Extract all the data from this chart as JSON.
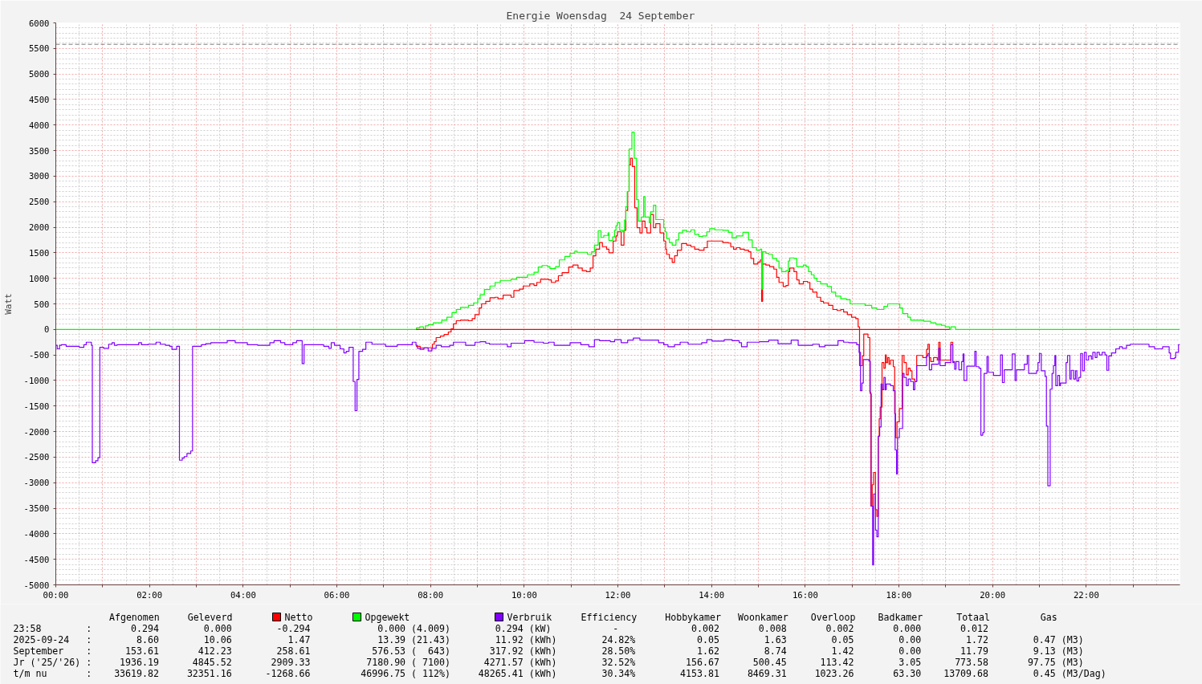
{
  "chart_data": {
    "type": "step",
    "title": "Energie Woensdag  24 September",
    "ylabel": "Watt",
    "xlim": [
      0,
      24
    ],
    "ylim": [
      -5000,
      6000
    ],
    "xticks": [
      {
        "value": 0,
        "label": "00:00"
      },
      {
        "value": 1,
        "label": null
      },
      {
        "value": 2,
        "label": "02:00"
      },
      {
        "value": 3,
        "label": null
      },
      {
        "value": 4,
        "label": "04:00"
      },
      {
        "value": 5,
        "label": null
      },
      {
        "value": 6,
        "label": "06:00"
      },
      {
        "value": 7,
        "label": null
      },
      {
        "value": 8,
        "label": "08:00"
      },
      {
        "value": 9,
        "label": null
      },
      {
        "value": 10,
        "label": "10:00"
      },
      {
        "value": 11,
        "label": null
      },
      {
        "value": 12,
        "label": "12:00"
      },
      {
        "value": 13,
        "label": null
      },
      {
        "value": 14,
        "label": "14:00"
      },
      {
        "value": 15,
        "label": null
      },
      {
        "value": 16,
        "label": "16:00"
      },
      {
        "value": 17,
        "label": null
      },
      {
        "value": 18,
        "label": "18:00"
      },
      {
        "value": 19,
        "label": null
      },
      {
        "value": 20,
        "label": "20:00"
      },
      {
        "value": 21,
        "label": null
      },
      {
        "value": 22,
        "label": "22:00"
      },
      {
        "value": 23,
        "label": null
      }
    ],
    "yticks": [
      -5000,
      -4500,
      -4000,
      -3500,
      -3000,
      -2500,
      -2000,
      -1500,
      -1000,
      -500,
      0,
      500,
      1000,
      1500,
      2000,
      2500,
      3000,
      3500,
      4000,
      4500,
      5000,
      5500,
      6000
    ],
    "grid": true,
    "legend": "bottom",
    "ref_lines": [
      {
        "axis": "y",
        "value": 5580,
        "color": "#7f7f7f",
        "line_style": "dashed"
      }
    ],
    "series": [
      {
        "name": "Netto",
        "color": "#ff0000",
        "x": [
          7.69,
          7.78,
          8.04,
          8.08,
          8.12,
          8.21,
          8.29,
          8.38,
          8.44,
          8.49,
          8.55,
          8.64,
          8.81,
          8.89,
          8.95,
          9.04,
          9.09,
          9.18,
          9.27,
          9.38,
          9.44,
          9.55,
          9.72,
          9.78,
          9.9,
          9.98,
          10.12,
          10.21,
          10.27,
          10.35,
          10.52,
          10.58,
          10.67,
          10.73,
          10.81,
          10.95,
          11.04,
          11.15,
          11.24,
          11.33,
          11.41,
          11.47,
          11.53,
          11.61,
          11.67,
          11.76,
          11.81,
          11.9,
          11.96,
          11.99,
          12.07,
          12.13,
          12.17,
          12.21,
          12.24,
          12.27,
          12.31,
          12.36,
          12.41,
          12.47,
          12.52,
          12.58,
          12.62,
          12.7,
          12.76,
          12.81,
          12.9,
          12.98,
          13.02,
          13.04,
          13.1,
          13.16,
          13.21,
          13.27,
          13.36,
          13.47,
          13.56,
          13.64,
          13.73,
          13.84,
          13.91,
          14.24,
          14.36,
          14.41,
          14.47,
          14.53,
          14.61,
          14.7,
          14.79,
          14.84,
          14.9,
          14.99,
          15.04,
          15.07,
          15.09,
          15.16,
          15.24,
          15.33,
          15.39,
          15.44,
          15.53,
          15.59,
          15.64,
          15.67,
          15.76,
          15.82,
          15.87,
          15.96,
          16.05,
          16.1,
          16.16,
          16.25,
          16.33,
          16.39,
          16.5,
          16.59,
          16.68,
          16.76,
          16.82,
          16.9,
          16.99,
          17.08,
          17.13,
          17.16,
          17.22,
          17.25,
          17.34,
          17.38,
          17.4,
          17.43,
          17.46,
          17.5,
          17.53,
          17.56,
          17.58,
          17.6,
          17.64,
          17.68,
          17.71,
          17.73,
          17.76,
          17.79,
          17.82,
          17.88,
          17.91,
          17.93,
          17.96,
          18.01,
          18.07,
          18.11,
          18.16,
          18.2,
          18.24,
          18.28,
          18.34,
          18.38,
          18.51,
          18.59,
          18.62,
          18.65,
          18.68,
          18.74,
          18.82,
          18.85,
          18.88,
          19.11,
          19.15,
          19.2
        ],
        "values": [
          -330,
          -360,
          -290,
          -240,
          -160,
          -130,
          -100,
          -50,
          10,
          110,
          170,
          180,
          170,
          210,
          290,
          420,
          500,
          550,
          620,
          630,
          600,
          670,
          630,
          760,
          790,
          850,
          890,
          860,
          920,
          980,
          970,
          920,
          950,
          1050,
          1110,
          1220,
          1260,
          1200,
          1150,
          1130,
          1200,
          1440,
          1570,
          1700,
          1620,
          1570,
          1500,
          1730,
          1830,
          1910,
          1650,
          1940,
          2330,
          2700,
          3220,
          3350,
          3190,
          2380,
          1990,
          1890,
          2120,
          1990,
          1890,
          2250,
          1990,
          2070,
          1890,
          1730,
          1570,
          1470,
          1390,
          1310,
          1440,
          1550,
          1680,
          1650,
          1620,
          1570,
          1550,
          1600,
          1730,
          1700,
          1690,
          1620,
          1570,
          1600,
          1570,
          1550,
          1520,
          1390,
          1280,
          1320,
          1360,
          550,
          1280,
          1260,
          1230,
          1180,
          1020,
          920,
          840,
          860,
          1130,
          1200,
          1130,
          970,
          890,
          940,
          920,
          790,
          730,
          630,
          550,
          520,
          470,
          390,
          370,
          390,
          340,
          290,
          240,
          210,
          50,
          -710,
          -520,
          -90,
          -160,
          -1230,
          -3460,
          -3040,
          -2800,
          -3530,
          -3660,
          -2090,
          -1750,
          -1520,
          -650,
          -760,
          -500,
          -650,
          -550,
          -680,
          -600,
          -730,
          -1650,
          -2120,
          -1810,
          -1550,
          -510,
          -650,
          -890,
          -760,
          -810,
          -970,
          -1020,
          -510,
          -550,
          -390,
          -290,
          -550,
          -630,
          -550,
          -600,
          -250,
          -600,
          -250,
          -630,
          -630
        ]
      },
      {
        "name": "Opgewekt",
        "color": "#00ff00",
        "x": [
          0,
          7.7,
          7.77,
          7.85,
          7.89,
          7.95,
          8.06,
          8.24,
          8.35,
          8.46,
          8.55,
          8.64,
          8.81,
          8.92,
          9.01,
          9.06,
          9.15,
          9.27,
          9.38,
          9.49,
          9.72,
          9.84,
          10.07,
          10.21,
          10.3,
          10.38,
          10.5,
          10.55,
          10.67,
          10.75,
          10.87,
          10.98,
          11.08,
          11.13,
          11.35,
          11.44,
          11.5,
          11.58,
          11.64,
          11.7,
          11.79,
          11.81,
          11.89,
          11.93,
          11.96,
          11.99,
          12.04,
          12.1,
          12.14,
          12.17,
          12.2,
          12.24,
          12.3,
          12.35,
          12.4,
          12.44,
          12.5,
          12.55,
          12.58,
          12.67,
          12.7,
          12.76,
          12.81,
          12.98,
          13.01,
          13.04,
          13.1,
          13.16,
          13.24,
          13.3,
          13.38,
          13.47,
          13.56,
          13.64,
          13.73,
          13.81,
          13.9,
          13.96,
          14.07,
          14.24,
          14.36,
          14.44,
          14.53,
          14.67,
          14.79,
          14.87,
          14.96,
          15.04,
          15.07,
          15.09,
          15.16,
          15.22,
          15.3,
          15.39,
          15.44,
          15.5,
          15.59,
          15.64,
          15.67,
          15.76,
          15.82,
          15.96,
          16.02,
          16.07,
          16.13,
          16.19,
          16.25,
          16.33,
          16.47,
          16.56,
          16.65,
          16.76,
          16.88,
          16.96,
          17.28,
          17.42,
          17.53,
          17.68,
          17.76,
          18.02,
          18.08,
          18.19,
          18.25,
          18.53,
          18.68,
          18.79,
          18.91,
          18.99,
          19.08,
          19.11,
          19.21,
          24
        ],
        "values": [
          0,
          30,
          50,
          0,
          70,
          90,
          130,
          180,
          240,
          330,
          390,
          430,
          470,
          520,
          600,
          680,
          780,
          850,
          920,
          960,
          980,
          1020,
          1070,
          1120,
          1220,
          1250,
          1230,
          1190,
          1230,
          1360,
          1430,
          1490,
          1530,
          1510,
          1470,
          1520,
          1650,
          1930,
          1800,
          1840,
          1890,
          1740,
          1810,
          1940,
          2030,
          2090,
          1940,
          1910,
          2140,
          2400,
          2700,
          3530,
          3860,
          3350,
          2540,
          2120,
          2200,
          2600,
          2200,
          2090,
          2300,
          2430,
          2150,
          1990,
          1910,
          1780,
          1700,
          1650,
          1750,
          1890,
          1940,
          1910,
          1950,
          1860,
          1820,
          1830,
          1910,
          1970,
          1950,
          1940,
          1900,
          1790,
          1830,
          1900,
          1750,
          1600,
          1550,
          1570,
          790,
          1520,
          1490,
          1470,
          1390,
          1340,
          1200,
          1130,
          1150,
          1340,
          1400,
          1390,
          1230,
          1260,
          1230,
          1130,
          1070,
          1000,
          940,
          890,
          840,
          730,
          650,
          600,
          580,
          500,
          470,
          420,
          390,
          450,
          500,
          420,
          310,
          240,
          180,
          160,
          130,
          100,
          80,
          50,
          0,
          50,
          0,
          0
        ]
      },
      {
        "color": "#ff0000",
        "type": "line",
        "x": [
          7.69,
          19.08
        ],
        "values": [
          0,
          0
        ]
      },
      {
        "name": "Verbruik",
        "color": "#8000ff",
        "x": [
          0,
          0.03,
          0.08,
          0.12,
          0.22,
          0.5,
          0.6,
          0.65,
          0.76,
          0.78,
          0.85,
          0.9,
          0.94,
          1.02,
          1.13,
          1.2,
          1.25,
          1.31,
          1.77,
          1.83,
          1.97,
          2.14,
          2.23,
          2.34,
          2.43,
          2.48,
          2.58,
          2.64,
          2.7,
          2.74,
          2.8,
          2.88,
          2.92,
          3.11,
          3.2,
          3.31,
          3.66,
          3.83,
          4.09,
          4.31,
          4.57,
          4.66,
          4.8,
          4.89,
          5.06,
          5.14,
          5.26,
          5.3,
          5.72,
          5.83,
          5.88,
          5.95,
          6.07,
          6.15,
          6.2,
          6.26,
          6.35,
          6.39,
          6.43,
          6.47,
          6.55,
          6.62,
          6.75,
          7.04,
          7.29,
          7.61,
          7.69,
          7.72,
          7.78,
          7.86,
          7.95,
          8.03,
          8.12,
          8.23,
          8.41,
          8.49,
          8.75,
          8.95,
          9.06,
          9.18,
          9.26,
          9.64,
          9.72,
          10.01,
          10.21,
          10.41,
          10.52,
          10.64,
          10.98,
          11.21,
          11.38,
          11.5,
          11.61,
          11.84,
          11.93,
          12.07,
          12.21,
          12.33,
          12.47,
          12.87,
          12.98,
          13.07,
          13.21,
          13.33,
          13.5,
          13.79,
          13.9,
          14.01,
          14.27,
          14.44,
          14.59,
          14.64,
          14.76,
          15.02,
          15.22,
          15.42,
          15.7,
          15.85,
          16.16,
          16.3,
          16.42,
          16.7,
          16.82,
          16.93,
          17.1,
          17.15,
          17.18,
          17.21,
          17.24,
          17.36,
          17.39,
          17.41,
          17.44,
          17.46,
          17.5,
          17.53,
          17.56,
          17.59,
          17.62,
          17.65,
          17.68,
          17.71,
          17.73,
          17.82,
          17.88,
          17.92,
          17.95,
          17.97,
          18.01,
          18.08,
          18.11,
          18.16,
          18.2,
          18.25,
          18.31,
          18.34,
          18.38,
          18.59,
          18.62,
          18.65,
          18.7,
          18.85,
          18.88,
          18.99,
          19.11,
          19.15,
          19.19,
          19.22,
          19.28,
          19.34,
          19.37,
          19.39,
          19.45,
          19.62,
          19.65,
          19.71,
          19.75,
          19.79,
          19.82,
          19.88,
          19.91,
          20.02,
          20.17,
          20.21,
          20.25,
          20.42,
          20.48,
          20.51,
          20.68,
          20.74,
          20.77,
          20.94,
          20.97,
          21.0,
          21.04,
          21.12,
          21.15,
          21.18,
          21.23,
          21.27,
          21.3,
          21.33,
          21.35,
          21.39,
          21.43,
          21.45,
          21.57,
          21.6,
          21.65,
          21.68,
          21.73,
          21.77,
          21.8,
          21.84,
          21.88,
          21.92,
          21.96,
          22.0,
          22.05,
          22.11,
          22.14,
          22.19,
          22.23,
          22.28,
          22.34,
          22.4,
          22.44,
          22.48,
          22.54,
          22.63,
          22.71,
          22.77,
          22.86,
          22.94,
          23.34,
          23.46,
          23.63,
          23.77,
          23.8,
          23.89,
          23.91,
          23.97,
          24
        ],
        "values": [
          -310,
          -380,
          -310,
          -300,
          -330,
          -350,
          -300,
          -250,
          -310,
          -2610,
          -2570,
          -2510,
          -350,
          -370,
          -290,
          -260,
          -310,
          -300,
          -260,
          -300,
          -290,
          -250,
          -290,
          -310,
          -330,
          -390,
          -330,
          -2560,
          -2520,
          -2490,
          -2430,
          -2380,
          -330,
          -300,
          -280,
          -260,
          -220,
          -260,
          -300,
          -310,
          -260,
          -220,
          -260,
          -300,
          -260,
          -220,
          -670,
          -300,
          -330,
          -370,
          -260,
          -310,
          -380,
          -460,
          -430,
          -350,
          -1020,
          -1590,
          -980,
          -430,
          -390,
          -250,
          -290,
          -330,
          -300,
          -250,
          -310,
          -370,
          -390,
          -360,
          -420,
          -370,
          -310,
          -340,
          -310,
          -250,
          -310,
          -250,
          -240,
          -270,
          -290,
          -340,
          -270,
          -220,
          -250,
          -270,
          -250,
          -310,
          -260,
          -300,
          -340,
          -200,
          -220,
          -240,
          -200,
          -260,
          -210,
          -170,
          -210,
          -260,
          -300,
          -340,
          -300,
          -250,
          -290,
          -260,
          -200,
          -230,
          -200,
          -220,
          -260,
          -340,
          -250,
          -240,
          -210,
          -280,
          -210,
          -310,
          -290,
          -340,
          -310,
          -220,
          -250,
          -260,
          -300,
          -450,
          -1200,
          -1050,
          -590,
          -620,
          -1260,
          -3460,
          -4610,
          -3220,
          -3930,
          -4060,
          -2090,
          -1910,
          -1070,
          -1180,
          -940,
          -1180,
          -1070,
          -1100,
          -1200,
          -2360,
          -2830,
          -2120,
          -1940,
          -860,
          -940,
          -1100,
          -970,
          -1020,
          -1180,
          -1020,
          -710,
          -520,
          -470,
          -790,
          -680,
          -370,
          -710,
          -650,
          -300,
          -650,
          -780,
          -630,
          -790,
          -630,
          -480,
          -1000,
          -720,
          -430,
          -730,
          -760,
          -2070,
          -2020,
          -860,
          -530,
          -840,
          -900,
          -500,
          -1040,
          -790,
          -480,
          -1000,
          -790,
          -680,
          -510,
          -860,
          -810,
          -650,
          -470,
          -810,
          -920,
          -1890,
          -3060,
          -1170,
          -860,
          -710,
          -510,
          -1100,
          -900,
          -1100,
          -1050,
          -650,
          -510,
          -970,
          -800,
          -970,
          -810,
          -1010,
          -940,
          -470,
          -810,
          -450,
          -600,
          -520,
          -580,
          -450,
          -550,
          -450,
          -500,
          -450,
          -500,
          -800,
          -520,
          -460,
          -380,
          -340,
          -370,
          -310,
          -290,
          -340,
          -380,
          -340,
          -460,
          -570,
          -550,
          -450,
          -300,
          -300
        ]
      }
    ],
    "annotations": [
      "Afgenomen     Geleverd",
      "Efficiency     Hobbykamer   Woonkamer    Overloop    Badkamer      Totaal         Gas",
      "23:58        :       0.294        0.000        -0.294            0.000 (4.009)        0.294 (kW)           -             0.002       0.008       0.002       0.000       0.012",
      "2025-09-24   :        8.60        10.06          1.47            13.39 (21.43)        11.92 (kWh)        24.82%           0.05        1.63        0.05        0.00        1.72        0.47 (M3)",
      "September    :      153.61       412.23        258.61           576.53 (  643)       317.92 (kWh)        28.50%           1.62        8.74        1.42        0.00       11.79        9.13 (M3)",
      "Jr ('25/'26) :     1936.19      4845.52       2909.33          7180.90 ( 7100)      4271.57 (kWh)        32.52%         156.67      500.45      113.42        3.05      773.58       97.75 (M3)",
      "t/m nu       :    33619.82     32351.16      -1268.66         46996.75 ( 112%)     48265.41 (kWh)        30.34%        4153.81     8469.31     1023.26       63.30    13709.68        0.45 (M3/Dag)"
    ]
  }
}
